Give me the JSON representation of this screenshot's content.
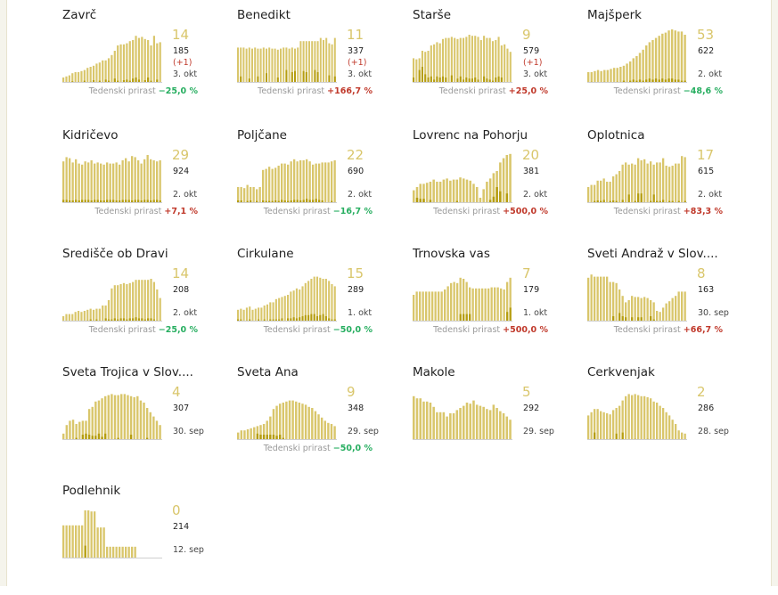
{
  "colors": {
    "bar": "#d9c66b",
    "bar_dark": "#b59d10",
    "big_number": "#d9c66b",
    "increase": "#c0392b",
    "decrease": "#27ae60"
  },
  "growth_label": "Tedenski prirast",
  "municipalities": [
    {
      "name": "Zavrč",
      "active": "14",
      "total": "185",
      "delta": "(+1)",
      "date": "3. okt",
      "growth": "−25,0 %",
      "growth_dir": "neg",
      "bars": [
        0.1,
        0.12,
        0.14,
        0.18,
        0.2,
        0.2,
        0.22,
        0.24,
        0.28,
        0.3,
        0.32,
        0.36,
        0.38,
        0.42,
        0.42,
        0.46,
        0.52,
        0.6,
        0.7,
        0.72,
        0.72,
        0.74,
        0.78,
        0.8,
        0.88,
        0.84,
        0.86,
        0.82,
        0.8,
        0.7,
        0.88,
        0.74,
        0.76
      ],
      "dark": [
        0,
        0,
        0,
        0.03,
        0,
        0.02,
        0,
        0.04,
        0,
        0.02,
        0.05,
        0,
        0.04,
        0,
        0.06,
        0.04,
        0,
        0.08,
        0.04,
        0,
        0.05,
        0.06,
        0.04,
        0.08,
        0.1,
        0.06,
        0,
        0.05,
        0.1,
        0.04,
        0,
        0.06,
        0
      ]
    },
    {
      "name": "Benedikt",
      "active": "11",
      "total": "337",
      "delta": "(+1)",
      "date": "3. okt",
      "growth": "+166,7 %",
      "growth_dir": "pos",
      "bars": [
        0.66,
        0.66,
        0.66,
        0.64,
        0.66,
        0.64,
        0.66,
        0.64,
        0.64,
        0.66,
        0.64,
        0.66,
        0.64,
        0.64,
        0.62,
        0.64,
        0.66,
        0.66,
        0.64,
        0.66,
        0.64,
        0.66,
        0.78,
        0.78,
        0.78,
        0.78,
        0.78,
        0.78,
        0.78,
        0.84,
        0.8,
        0.84,
        0.74,
        0.72,
        0.84
      ],
      "dark": [
        0,
        0.12,
        0,
        0,
        0.08,
        0,
        0,
        0.12,
        0,
        0,
        0.18,
        0,
        0,
        0,
        0.1,
        0,
        0,
        0.24,
        0,
        0.2,
        0.22,
        0,
        0,
        0.22,
        0.2,
        0,
        0,
        0.24,
        0.2,
        0,
        0,
        0,
        0.14,
        0,
        0.12
      ]
    },
    {
      "name": "Starše",
      "active": "9",
      "total": "579",
      "delta": "(+1)",
      "date": "3. okt",
      "growth": "+25,0 %",
      "growth_dir": "pos",
      "bars": [
        0.46,
        0.44,
        0.46,
        0.6,
        0.58,
        0.6,
        0.7,
        0.72,
        0.76,
        0.74,
        0.82,
        0.84,
        0.84,
        0.86,
        0.84,
        0.82,
        0.84,
        0.84,
        0.86,
        0.9,
        0.88,
        0.88,
        0.86,
        0.8,
        0.88,
        0.84,
        0.84,
        0.78,
        0.8,
        0.86,
        0.7,
        0.72,
        0.64,
        0.58
      ],
      "dark": [
        0.1,
        0,
        0.24,
        0.3,
        0.16,
        0.1,
        0.12,
        0.06,
        0.12,
        0.1,
        0.12,
        0.1,
        0,
        0.14,
        0,
        0.08,
        0.12,
        0.06,
        0.1,
        0.08,
        0.08,
        0.1,
        0.06,
        0,
        0.12,
        0.08,
        0.06,
        0.04,
        0.1,
        0.12,
        0.1,
        0,
        0,
        0
      ]
    },
    {
      "name": "Majšperk",
      "active": "53",
      "total": "622",
      "delta": "",
      "date": "2. okt",
      "growth": "−48,6 %",
      "growth_dir": "neg",
      "bars": [
        0.2,
        0.2,
        0.22,
        0.24,
        0.22,
        0.24,
        0.24,
        0.26,
        0.28,
        0.28,
        0.3,
        0.32,
        0.36,
        0.4,
        0.46,
        0.5,
        0.56,
        0.62,
        0.7,
        0.76,
        0.8,
        0.84,
        0.88,
        0.92,
        0.94,
        0.98,
        1,
        0.98,
        0.96,
        0.96,
        0.9
      ],
      "dark": [
        0,
        0.02,
        0,
        0,
        0,
        0.02,
        0,
        0,
        0,
        0.02,
        0,
        0.04,
        0,
        0.04,
        0.06,
        0.04,
        0.06,
        0.04,
        0.06,
        0.08,
        0.06,
        0.08,
        0.06,
        0.08,
        0.06,
        0.08,
        0.08,
        0.06,
        0.06,
        0.04,
        0.04
      ]
    },
    {
      "name": "Kidričevo",
      "active": "29",
      "total": "924",
      "delta": "",
      "date": "2. okt",
      "growth": "+7,1 %",
      "growth_dir": "pos",
      "bars": [
        0.78,
        0.86,
        0.84,
        0.76,
        0.82,
        0.74,
        0.72,
        0.78,
        0.76,
        0.8,
        0.74,
        0.76,
        0.74,
        0.72,
        0.76,
        0.74,
        0.74,
        0.76,
        0.72,
        0.8,
        0.84,
        0.78,
        0.88,
        0.86,
        0.8,
        0.74,
        0.82,
        0.9,
        0.82,
        0.8,
        0.78,
        0.8
      ],
      "dark": [
        0.06,
        0.06,
        0.05,
        0.05,
        0.06,
        0.05,
        0.06,
        0.06,
        0.06,
        0.05,
        0.06,
        0.06,
        0.05,
        0.05,
        0.06,
        0.06,
        0.06,
        0.05,
        0.05,
        0.06,
        0.06,
        0.06,
        0.05,
        0.06,
        0.06,
        0.05,
        0.06,
        0.06,
        0.05,
        0.06,
        0.06,
        0.05
      ]
    },
    {
      "name": "Poljčane",
      "active": "22",
      "total": "690",
      "delta": "",
      "date": "2. okt",
      "growth": "−16,7 %",
      "growth_dir": "neg",
      "bars": [
        0.3,
        0.3,
        0.28,
        0.34,
        0.3,
        0.3,
        0.26,
        0.3,
        0.62,
        0.64,
        0.68,
        0.64,
        0.66,
        0.7,
        0.74,
        0.74,
        0.72,
        0.78,
        0.82,
        0.78,
        0.8,
        0.8,
        0.82,
        0.78,
        0.72,
        0.74,
        0.74,
        0.76,
        0.76,
        0.76,
        0.78,
        0.8
      ],
      "dark": [
        0.05,
        0.05,
        0,
        0.04,
        0.05,
        0,
        0.04,
        0,
        0.05,
        0.04,
        0.04,
        0.04,
        0.05,
        0.04,
        0.06,
        0.05,
        0.04,
        0.05,
        0.06,
        0.06,
        0.05,
        0.06,
        0.08,
        0.06,
        0.06,
        0.08,
        0.06,
        0.05,
        0,
        0,
        0.04,
        0
      ]
    },
    {
      "name": "Lovrenc na Pohorju",
      "active": "20",
      "total": "381",
      "delta": "",
      "date": "2. okt",
      "growth": "+500,0 %",
      "growth_dir": "pos",
      "bars": [
        0.24,
        0.3,
        0.36,
        0.36,
        0.38,
        0.4,
        0.44,
        0.4,
        0.4,
        0.44,
        0.46,
        0.42,
        0.44,
        0.44,
        0.48,
        0.46,
        0.44,
        0.42,
        0.36,
        0.3,
        0.1,
        0.26,
        0.4,
        0.46,
        0.56,
        0.6,
        0.76,
        0.84,
        0.9,
        0.92
      ],
      "dark": [
        0,
        0.1,
        0.08,
        0.08,
        0,
        0.06,
        0,
        0,
        0,
        0,
        0,
        0,
        0,
        0.04,
        0,
        0,
        0,
        0,
        0,
        0,
        0,
        0,
        0,
        0.06,
        0.12,
        0.3,
        0.22,
        0,
        0.18,
        0
      ]
    },
    {
      "name": "Oplotnica",
      "active": "17",
      "total": "615",
      "delta": "",
      "date": "2. okt",
      "growth": "+83,3 %",
      "growth_dir": "pos",
      "bars": [
        0.3,
        0.34,
        0.34,
        0.42,
        0.42,
        0.46,
        0.4,
        0.4,
        0.5,
        0.54,
        0.6,
        0.72,
        0.76,
        0.72,
        0.74,
        0.72,
        0.84,
        0.8,
        0.82,
        0.74,
        0.78,
        0.72,
        0.76,
        0.76,
        0.84,
        0.7,
        0.68,
        0.7,
        0.74,
        0.74,
        0.88,
        0.86
      ],
      "dark": [
        0,
        0,
        0.04,
        0.05,
        0.04,
        0.06,
        0,
        0.04,
        0.05,
        0.04,
        0,
        0.06,
        0,
        0.16,
        0,
        0.04,
        0.18,
        0.18,
        0,
        0,
        0.04,
        0.16,
        0.04,
        0.04,
        0.06,
        0,
        0.04,
        0.04,
        0,
        0.04,
        0,
        0.04
      ]
    },
    {
      "name": "Središče ob Dravi",
      "active": "14",
      "total": "208",
      "delta": "",
      "date": "2. okt",
      "growth": "−25,0 %",
      "growth_dir": "neg",
      "bars": [
        0.1,
        0.14,
        0.14,
        0.14,
        0.18,
        0.2,
        0.18,
        0.2,
        0.22,
        0.24,
        0.22,
        0.24,
        0.24,
        0.3,
        0.3,
        0.4,
        0.62,
        0.68,
        0.68,
        0.7,
        0.72,
        0.7,
        0.72,
        0.74,
        0.78,
        0.78,
        0.78,
        0.78,
        0.78,
        0.8,
        0.74,
        0.6,
        0.44
      ],
      "dark": [
        0,
        0,
        0,
        0,
        0,
        0,
        0,
        0,
        0.02,
        0.04,
        0,
        0.04,
        0.02,
        0,
        0.06,
        0.04,
        0.04,
        0.06,
        0.04,
        0.06,
        0.06,
        0.04,
        0.06,
        0.06,
        0.08,
        0.06,
        0.06,
        0.04,
        0.06,
        0.06,
        0.04,
        0.02,
        0.02
      ]
    },
    {
      "name": "Cirkulane",
      "active": "15",
      "total": "289",
      "delta": "",
      "date": "1. okt",
      "growth": "−50,0 %",
      "growth_dir": "neg",
      "bars": [
        0.22,
        0.24,
        0.22,
        0.26,
        0.28,
        0.22,
        0.24,
        0.26,
        0.26,
        0.3,
        0.32,
        0.36,
        0.36,
        0.42,
        0.44,
        0.46,
        0.48,
        0.5,
        0.56,
        0.58,
        0.62,
        0.6,
        0.66,
        0.72,
        0.76,
        0.8,
        0.84,
        0.84,
        0.82,
        0.8,
        0.8,
        0.76,
        0.7,
        0.66
      ],
      "dark": [
        0.04,
        0.04,
        0,
        0.02,
        0.04,
        0,
        0,
        0.04,
        0,
        0.04,
        0,
        0.04,
        0.04,
        0.04,
        0.04,
        0.06,
        0,
        0.06,
        0.06,
        0.08,
        0.06,
        0.08,
        0.1,
        0.12,
        0.12,
        0.14,
        0.14,
        0.1,
        0.12,
        0.14,
        0.1,
        0.06,
        0.04,
        0.04
      ]
    },
    {
      "name": "Trnovska vas",
      "active": "7",
      "total": "179",
      "delta": "",
      "date": "1. okt",
      "growth": "+500,0 %",
      "growth_dir": "pos",
      "bars": [
        0.5,
        0.56,
        0.56,
        0.56,
        0.56,
        0.56,
        0.56,
        0.56,
        0.56,
        0.56,
        0.6,
        0.66,
        0.72,
        0.74,
        0.72,
        0.82,
        0.8,
        0.74,
        0.64,
        0.62,
        0.62,
        0.62,
        0.62,
        0.62,
        0.62,
        0.64,
        0.64,
        0.64,
        0.62,
        0.6,
        0.74,
        0.82
      ],
      "dark": [
        0,
        0,
        0,
        0,
        0,
        0,
        0,
        0,
        0,
        0,
        0,
        0,
        0,
        0,
        0,
        0.14,
        0.14,
        0.14,
        0.14,
        0,
        0,
        0,
        0,
        0,
        0,
        0,
        0,
        0,
        0,
        0,
        0.18,
        0.26
      ]
    },
    {
      "name": "Sveti Andraž v Slov....",
      "active": "8",
      "total": "163",
      "delta": "",
      "date": "30. sep",
      "growth": "+66,7 %",
      "growth_dir": "pos",
      "bars": [
        0.82,
        0.88,
        0.84,
        0.84,
        0.84,
        0.84,
        0.84,
        0.74,
        0.74,
        0.72,
        0.6,
        0.48,
        0.36,
        0.4,
        0.48,
        0.46,
        0.46,
        0.44,
        0.46,
        0.44,
        0.4,
        0.36,
        0.2,
        0.18,
        0.26,
        0.34,
        0.38,
        0.44,
        0.48,
        0.56,
        0.56,
        0.56
      ],
      "dark": [
        0,
        0,
        0,
        0,
        0,
        0,
        0,
        0,
        0.1,
        0,
        0.16,
        0.1,
        0.08,
        0,
        0.08,
        0,
        0.08,
        0.08,
        0,
        0,
        0.1,
        0.04,
        0,
        0,
        0,
        0,
        0,
        0,
        0,
        0,
        0,
        0
      ]
    },
    {
      "name": "Sveta Trojica v Slov....",
      "active": "4",
      "total": "307",
      "delta": "",
      "date": "30. sep",
      "growth": "",
      "growth_dir": "",
      "bars": [
        0.12,
        0.28,
        0.36,
        0.38,
        0.3,
        0.34,
        0.36,
        0.36,
        0.58,
        0.62,
        0.72,
        0.74,
        0.78,
        0.82,
        0.84,
        0.86,
        0.84,
        0.84,
        0.86,
        0.86,
        0.84,
        0.82,
        0.8,
        0.82,
        0.74,
        0.7,
        0.6,
        0.52,
        0.44,
        0.36,
        0.28
      ],
      "dark": [
        0,
        0,
        0,
        0,
        0.04,
        0,
        0.1,
        0.12,
        0.1,
        0.08,
        0.08,
        0.12,
        0.06,
        0.12,
        0,
        0,
        0.02,
        0.04,
        0,
        0,
        0,
        0.1,
        0,
        0,
        0,
        0,
        0.04,
        0,
        0,
        0,
        0
      ]
    },
    {
      "name": "Sveta Ana",
      "active": "9",
      "total": "348",
      "delta": "",
      "date": "29. sep",
      "growth": "−50,0 %",
      "growth_dir": "neg",
      "bars": [
        0.14,
        0.18,
        0.18,
        0.2,
        0.22,
        0.24,
        0.26,
        0.28,
        0.3,
        0.36,
        0.44,
        0.58,
        0.64,
        0.68,
        0.7,
        0.72,
        0.74,
        0.74,
        0.72,
        0.7,
        0.68,
        0.66,
        0.62,
        0.6,
        0.54,
        0.48,
        0.42,
        0.36,
        0.32,
        0.3,
        0.26
      ],
      "dark": [
        0,
        0,
        0,
        0,
        0,
        0,
        0.12,
        0.1,
        0.1,
        0.1,
        0.1,
        0.1,
        0.08,
        0.1,
        0.04,
        0,
        0,
        0,
        0,
        0,
        0,
        0,
        0,
        0,
        0,
        0,
        0,
        0,
        0,
        0,
        0
      ]
    },
    {
      "name": "Makole",
      "active": "5",
      "total": "292",
      "delta": "",
      "date": "29. sep",
      "growth": "",
      "growth_dir": "",
      "bars": [
        0.82,
        0.78,
        0.78,
        0.72,
        0.72,
        0.7,
        0.62,
        0.52,
        0.52,
        0.52,
        0.44,
        0.5,
        0.5,
        0.56,
        0.6,
        0.64,
        0.7,
        0.68,
        0.74,
        0.66,
        0.64,
        0.62,
        0.58,
        0.56,
        0.66,
        0.6,
        0.54,
        0.5,
        0.44,
        0.38
      ],
      "dark": [
        0,
        0,
        0,
        0,
        0,
        0,
        0,
        0,
        0,
        0,
        0,
        0,
        0,
        0,
        0,
        0,
        0,
        0,
        0,
        0,
        0,
        0,
        0,
        0,
        0,
        0,
        0,
        0,
        0,
        0
      ]
    },
    {
      "name": "Cerkvenjak",
      "active": "2",
      "total": "286",
      "delta": "",
      "date": "28. sep",
      "growth": "",
      "growth_dir": "",
      "bars": [
        0.46,
        0.52,
        0.58,
        0.58,
        0.54,
        0.52,
        0.5,
        0.48,
        0.56,
        0.6,
        0.64,
        0.74,
        0.82,
        0.86,
        0.84,
        0.86,
        0.84,
        0.82,
        0.82,
        0.8,
        0.78,
        0.72,
        0.7,
        0.64,
        0.6,
        0.52,
        0.46,
        0.38,
        0.3,
        0.18,
        0.14,
        0.12
      ],
      "dark": [
        0,
        0,
        0.14,
        0,
        0,
        0,
        0,
        0.02,
        0,
        0.12,
        0,
        0.14,
        0,
        0,
        0,
        0.02,
        0,
        0,
        0,
        0.02,
        0,
        0,
        0,
        0,
        0,
        0,
        0,
        0,
        0,
        0,
        0,
        0
      ]
    },
    {
      "name": "Podlehnik",
      "active": "0",
      "total": "214",
      "delta": "",
      "date": "12. sep",
      "growth": "",
      "growth_dir": "",
      "bars": [
        0.62,
        0.62,
        0.62,
        0.62,
        0.62,
        0.62,
        0.62,
        0.9,
        0.9,
        0.88,
        0.88,
        0.58,
        0.58,
        0.58,
        0.22,
        0.22,
        0.22,
        0.22,
        0.22,
        0.22,
        0.22,
        0.22,
        0.22,
        0.22,
        0,
        0,
        0,
        0,
        0,
        0,
        0,
        0
      ],
      "dark": [
        0,
        0,
        0,
        0,
        0,
        0,
        0,
        0.24,
        0,
        0,
        0,
        0,
        0,
        0,
        0,
        0,
        0,
        0,
        0,
        0,
        0,
        0,
        0,
        0,
        0,
        0,
        0,
        0,
        0,
        0,
        0,
        0
      ]
    }
  ]
}
